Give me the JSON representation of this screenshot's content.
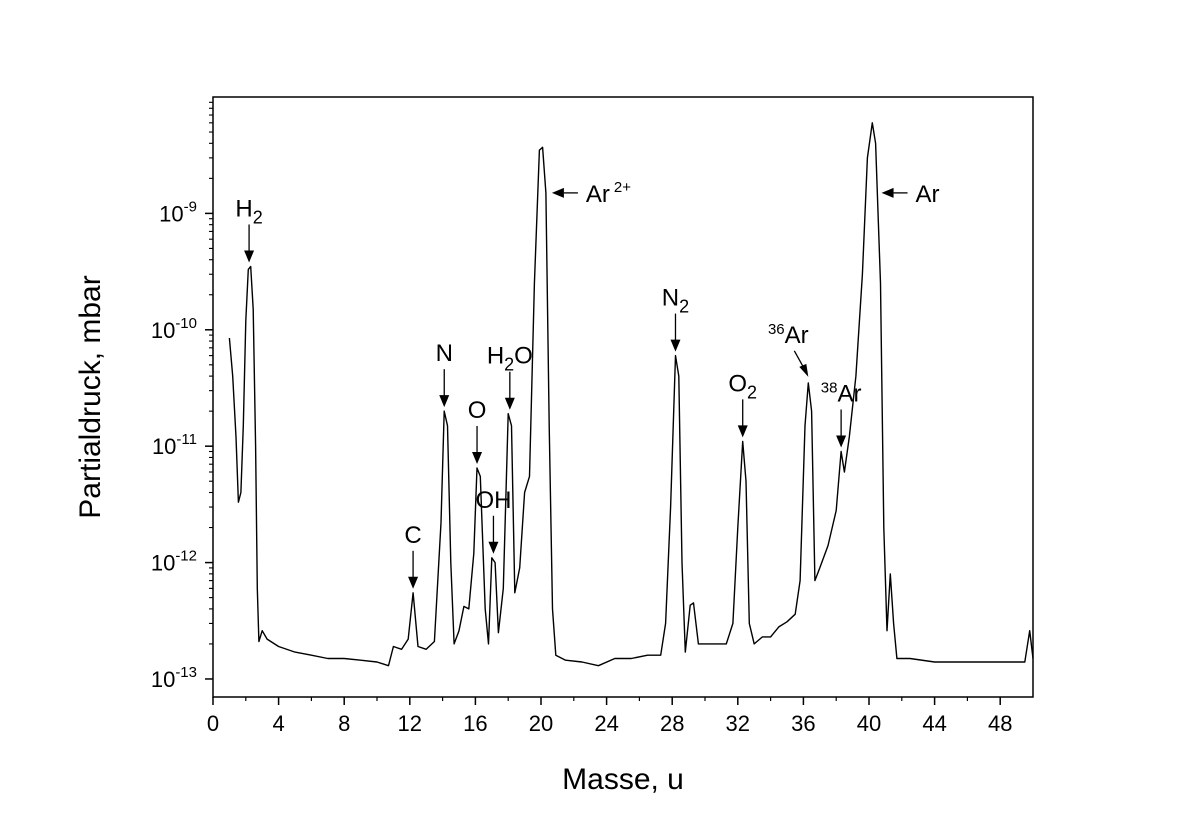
{
  "chart_data": {
    "type": "line",
    "xlabel": "Masse, u",
    "ylabel": "Partialdruck, mbar",
    "xlim": [
      0,
      50
    ],
    "ylim": [
      7e-14,
      1e-08
    ],
    "y_scale": "log",
    "grid": false,
    "legend": "none",
    "line_color": "#000000",
    "x_ticks": [
      "0",
      "4",
      "8",
      "12",
      "16",
      "20",
      "24",
      "28",
      "32",
      "36",
      "40",
      "44",
      "48"
    ],
    "y_ticks": [
      {
        "base": "10",
        "exp": "-13",
        "value": 1e-13
      },
      {
        "base": "10",
        "exp": "-12",
        "value": 1e-12
      },
      {
        "base": "10",
        "exp": "-11",
        "value": 1e-11
      },
      {
        "base": "10",
        "exp": "-10",
        "value": 1e-10
      },
      {
        "base": "10",
        "exp": "-9",
        "value": 1e-09
      }
    ],
    "series": [
      {
        "points": [
          [
            1.0,
            8.5e-11
          ],
          [
            1.2,
            4e-11
          ],
          [
            1.4,
            1.2e-11
          ],
          [
            1.55,
            3.3e-12
          ],
          [
            1.7,
            4e-12
          ],
          [
            1.85,
            1.5e-11
          ],
          [
            2.0,
            1.2e-10
          ],
          [
            2.15,
            3.3e-10
          ],
          [
            2.3,
            3.5e-10
          ],
          [
            2.45,
            1.5e-10
          ],
          [
            2.6,
            1e-11
          ],
          [
            2.7,
            6e-13
          ],
          [
            2.8,
            2.1e-13
          ],
          [
            3.0,
            2.6e-13
          ],
          [
            3.3,
            2.2e-13
          ],
          [
            4.0,
            1.9e-13
          ],
          [
            5.0,
            1.7e-13
          ],
          [
            6.0,
            1.6e-13
          ],
          [
            7.0,
            1.5e-13
          ],
          [
            8.0,
            1.5e-13
          ],
          [
            9.0,
            1.45e-13
          ],
          [
            10.0,
            1.4e-13
          ],
          [
            10.7,
            1.3e-13
          ],
          [
            11.0,
            1.9e-13
          ],
          [
            11.5,
            1.8e-13
          ],
          [
            11.9,
            2.2e-13
          ],
          [
            12.2,
            5.5e-13
          ],
          [
            12.5,
            1.9e-13
          ],
          [
            13.0,
            1.8e-13
          ],
          [
            13.5,
            2.1e-13
          ],
          [
            13.9,
            2.2e-12
          ],
          [
            14.1,
            2e-11
          ],
          [
            14.3,
            1.5e-11
          ],
          [
            14.5,
            1e-12
          ],
          [
            14.7,
            2e-13
          ],
          [
            15.0,
            2.6e-13
          ],
          [
            15.3,
            4.2e-13
          ],
          [
            15.6,
            4e-13
          ],
          [
            15.9,
            1.2e-12
          ],
          [
            16.1,
            6.5e-12
          ],
          [
            16.3,
            5.5e-12
          ],
          [
            16.6,
            4e-13
          ],
          [
            16.8,
            2e-13
          ],
          [
            17.0,
            1.1e-12
          ],
          [
            17.2,
            1e-12
          ],
          [
            17.4,
            2.5e-13
          ],
          [
            17.7,
            6e-13
          ],
          [
            18.0,
            1.9e-11
          ],
          [
            18.2,
            1.5e-11
          ],
          [
            18.4,
            5.5e-13
          ],
          [
            18.7,
            9e-13
          ],
          [
            19.0,
            4e-12
          ],
          [
            19.3,
            5.5e-12
          ],
          [
            19.6,
            2.5e-10
          ],
          [
            19.9,
            3.5e-09
          ],
          [
            20.1,
            3.7e-09
          ],
          [
            20.3,
            1.5e-09
          ],
          [
            20.5,
            1.5e-11
          ],
          [
            20.7,
            4e-13
          ],
          [
            20.9,
            1.6e-13
          ],
          [
            21.5,
            1.45e-13
          ],
          [
            22.5,
            1.4e-13
          ],
          [
            23.5,
            1.3e-13
          ],
          [
            24.5,
            1.5e-13
          ],
          [
            25.5,
            1.5e-13
          ],
          [
            26.5,
            1.6e-13
          ],
          [
            27.3,
            1.6e-13
          ],
          [
            27.6,
            3e-13
          ],
          [
            27.9,
            3e-12
          ],
          [
            28.2,
            6e-11
          ],
          [
            28.4,
            4e-11
          ],
          [
            28.6,
            1e-12
          ],
          [
            28.8,
            1.7e-13
          ],
          [
            29.1,
            4.3e-13
          ],
          [
            29.3,
            4.5e-13
          ],
          [
            29.6,
            2e-13
          ],
          [
            30.5,
            2e-13
          ],
          [
            31.3,
            2e-13
          ],
          [
            31.7,
            3e-13
          ],
          [
            32.0,
            2e-12
          ],
          [
            32.3,
            1.1e-11
          ],
          [
            32.5,
            5e-12
          ],
          [
            32.7,
            3e-13
          ],
          [
            33.0,
            2e-13
          ],
          [
            33.5,
            2.3e-13
          ],
          [
            34.0,
            2.3e-13
          ],
          [
            34.5,
            2.8e-13
          ],
          [
            35.0,
            3.1e-13
          ],
          [
            35.5,
            3.6e-13
          ],
          [
            35.8,
            7e-13
          ],
          [
            36.1,
            1.5e-11
          ],
          [
            36.3,
            3.5e-11
          ],
          [
            36.5,
            2e-11
          ],
          [
            36.7,
            7e-13
          ],
          [
            37.0,
            9e-13
          ],
          [
            37.5,
            1.4e-12
          ],
          [
            38.0,
            2.8e-12
          ],
          [
            38.3,
            9e-12
          ],
          [
            38.5,
            6e-12
          ],
          [
            38.8,
            1.2e-11
          ],
          [
            39.2,
            4e-11
          ],
          [
            39.6,
            3e-10
          ],
          [
            39.9,
            3e-09
          ],
          [
            40.2,
            6e-09
          ],
          [
            40.4,
            4e-09
          ],
          [
            40.7,
            2.5e-10
          ],
          [
            40.9,
            2e-12
          ],
          [
            41.1,
            2.6e-13
          ],
          [
            41.3,
            8e-13
          ],
          [
            41.5,
            3e-13
          ],
          [
            41.7,
            1.5e-13
          ],
          [
            42.5,
            1.5e-13
          ],
          [
            44.0,
            1.4e-13
          ],
          [
            46.0,
            1.4e-13
          ],
          [
            48.0,
            1.4e-13
          ],
          [
            49.5,
            1.4e-13
          ],
          [
            49.8,
            2.6e-13
          ],
          [
            50.0,
            1.5e-13
          ]
        ]
      }
    ],
    "annotations": [
      {
        "label": "H",
        "sub": "2",
        "sup": "",
        "arrow": "down",
        "x": 2.2,
        "y": 3.5e-10
      },
      {
        "label": "C",
        "sub": "",
        "sup": "",
        "arrow": "down",
        "x": 12.2,
        "y": 5.5e-13
      },
      {
        "label": "N",
        "sub": "",
        "sup": "",
        "arrow": "down",
        "x": 14.1,
        "y": 2e-11
      },
      {
        "label": "O",
        "sub": "",
        "sup": "",
        "arrow": "down",
        "x": 16.1,
        "y": 6.5e-12
      },
      {
        "label": "OH",
        "sub": "",
        "sup": "",
        "arrow": "down",
        "x": 17.1,
        "y": 1.1e-12
      },
      {
        "label": "H",
        "sub": "2",
        "after": "O",
        "sup": "",
        "arrow": "down",
        "x": 18.1,
        "y": 1.9e-11
      },
      {
        "label": "Ar",
        "sub": "",
        "sup": "2+",
        "arrow": "left",
        "x": 20.3,
        "y": 1.5e-09
      },
      {
        "label": "N",
        "sub": "2",
        "sup": "",
        "arrow": "down",
        "x": 28.2,
        "y": 6e-11
      },
      {
        "label": "O",
        "sub": "2",
        "sup": "",
        "arrow": "down",
        "x": 32.3,
        "y": 1.1e-11
      },
      {
        "label": "Ar",
        "pre_sup": "36",
        "sub": "",
        "sup": "",
        "arrow": "diag",
        "x": 36.3,
        "y": 3.5e-11
      },
      {
        "label": "Ar",
        "pre_sup": "38",
        "sub": "",
        "sup": "",
        "arrow": "down",
        "x": 38.3,
        "y": 9e-12
      },
      {
        "label": "Ar",
        "sub": "",
        "sup": "",
        "arrow": "left",
        "x": 40.4,
        "y": 1.5e-09
      }
    ]
  }
}
